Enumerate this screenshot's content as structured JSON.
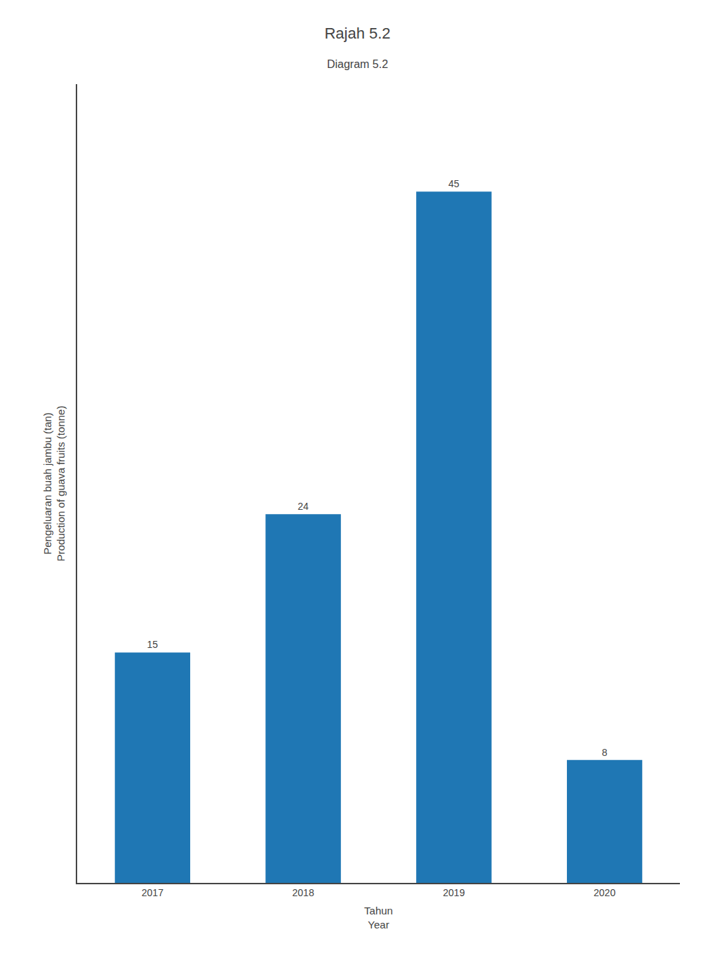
{
  "chart_data": {
    "type": "bar",
    "title": "Rajah 5.2",
    "subtitle": "Diagram 5.2",
    "x_label": "Tahun\nYear",
    "y_label": "Pengeluaran buah jambu (tan)\nProduction of guava fruits (tonne)",
    "categories": [
      "2017",
      "2018",
      "2019",
      "2020"
    ],
    "values": [
      15,
      24,
      45,
      8
    ],
    "ylim": [
      0,
      52
    ],
    "tick_labels": "x",
    "data_labels": true,
    "grid": false
  }
}
